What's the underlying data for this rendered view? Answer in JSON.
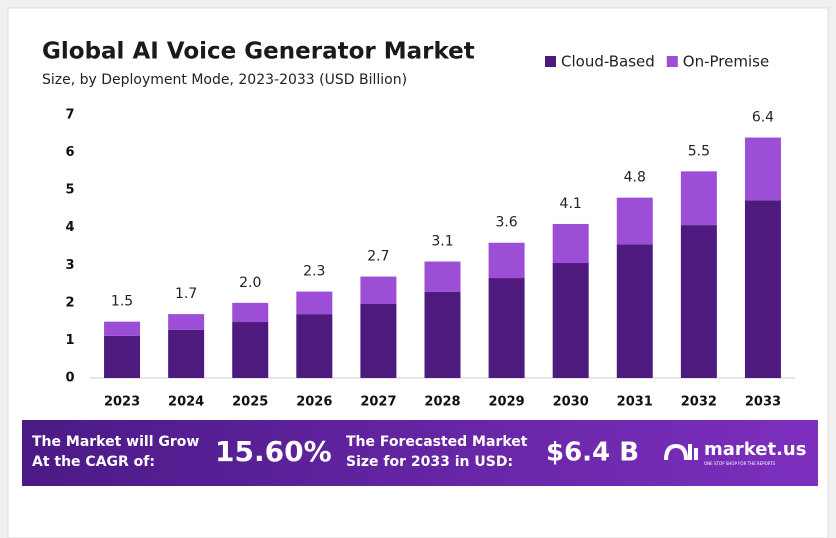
{
  "chart_data": {
    "type": "stacked-bar",
    "title": "Global AI Voice Generator Market",
    "subtitle": "Size, by Deployment Mode, 2023-2033 (USD Billion)",
    "categories": [
      "2023",
      "2024",
      "2025",
      "2026",
      "2027",
      "2028",
      "2029",
      "2030",
      "2031",
      "2032",
      "2033"
    ],
    "series": [
      {
        "name": "Cloud-Based",
        "color": "#4e1a7e",
        "values": [
          1.12,
          1.28,
          1.49,
          1.7,
          1.97,
          2.29,
          2.66,
          3.06,
          3.56,
          4.07,
          4.73
        ]
      },
      {
        "name": "On-Premise",
        "color": "#9c4fd6",
        "values": [
          0.38,
          0.42,
          0.51,
          0.6,
          0.73,
          0.81,
          0.94,
          1.04,
          1.24,
          1.43,
          1.67
        ]
      }
    ],
    "total_labels": [
      "1.5",
      "1.7",
      "2.0",
      "2.3",
      "2.7",
      "3.1",
      "3.6",
      "4.1",
      "4.8",
      "5.5",
      "6.4"
    ],
    "ylim": [
      0,
      7
    ],
    "yticks": [
      0,
      1,
      2,
      3,
      4,
      5,
      6,
      7
    ],
    "grid": false,
    "legend": "top-right",
    "footer": {
      "cagr_text": [
        "The Market will Grow",
        "At the CAGR of:"
      ],
      "cagr": "15.60%",
      "forecast_text": [
        "The Forecasted Market",
        "Size for 2033 in USD:"
      ],
      "forecast": "$6.4 B",
      "brand": "market.us",
      "tagline": "ONE STOP SHOP FOR THE REPORTS"
    }
  }
}
